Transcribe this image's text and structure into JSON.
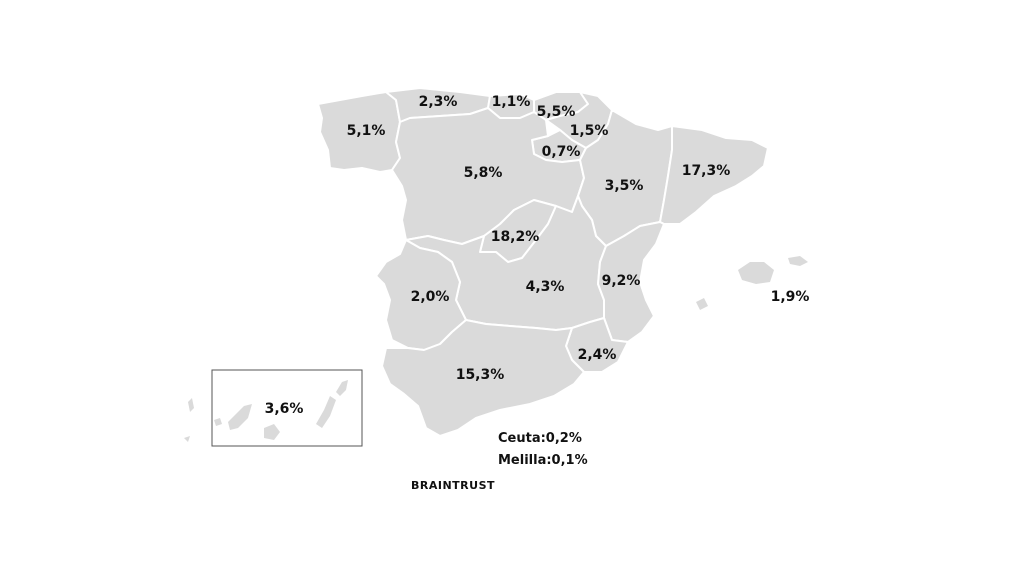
{
  "colors": {
    "region_fill": "#dadada",
    "border": "#ffffff",
    "text": "#111111"
  },
  "regions": {
    "galicia": {
      "name": "Galicia",
      "value": "5,1%"
    },
    "asturias": {
      "name": "Asturias",
      "value": "2,3%"
    },
    "cantabria": {
      "name": "Cantabria",
      "value": "1,1%"
    },
    "pais_vasco": {
      "name": "País Vasco",
      "value": "5,5%"
    },
    "navarra": {
      "name": "Navarra",
      "value": "1,5%"
    },
    "la_rioja": {
      "name": "La Rioja",
      "value": "0,7%"
    },
    "castilla_leon": {
      "name": "Castilla y León",
      "value": "5,8%"
    },
    "aragon": {
      "name": "Aragón",
      "value": "3,5%"
    },
    "cataluna": {
      "name": "Cataluña",
      "value": "17,3%"
    },
    "madrid": {
      "name": "Madrid",
      "value": "18,2%"
    },
    "castilla_la_mancha": {
      "name": "Castilla-La Mancha",
      "value": "4,3%"
    },
    "valencia": {
      "name": "Comunidad Valenciana",
      "value": "9,2%"
    },
    "baleares": {
      "name": "Islas Baleares",
      "value": "1,9%"
    },
    "extremadura": {
      "name": "Extremadura",
      "value": "2,0%"
    },
    "andalucia": {
      "name": "Andalucía",
      "value": "15,3%"
    },
    "murcia": {
      "name": "Murcia",
      "value": "2,4%"
    },
    "canarias": {
      "name": "Canarias",
      "value": "3,6%"
    }
  },
  "notes": {
    "ceuta": "Ceuta:0,2%",
    "melilla": "Melilla:0,1%"
  },
  "logo": "BRAINTRUST"
}
